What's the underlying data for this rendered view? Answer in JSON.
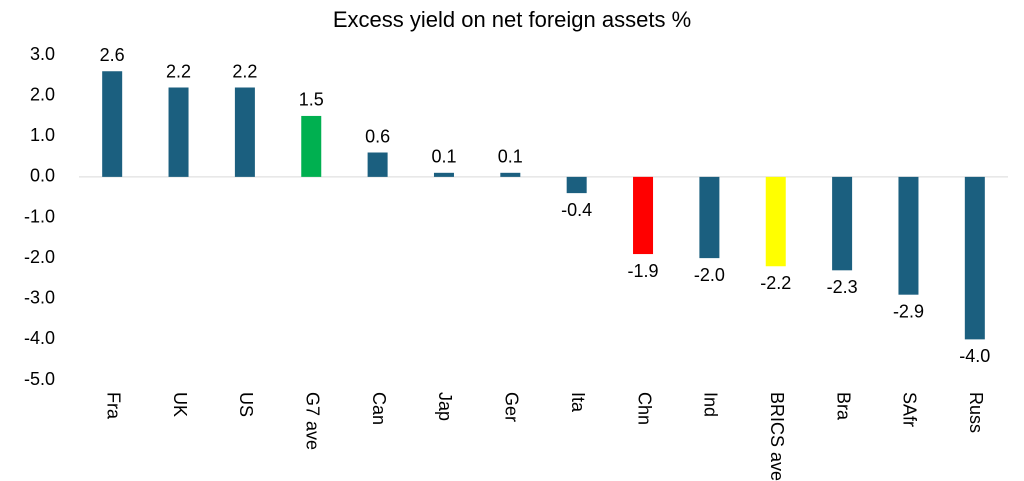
{
  "chart_data": {
    "type": "bar",
    "title": "Excess yield on net foreign assets %",
    "categories": [
      "Fra",
      "UK",
      "US",
      "G7 ave",
      "Can",
      "Jap",
      "Ger",
      "Ita",
      "Chn",
      "Ind",
      "BRICS ave",
      "Bra",
      "SAfr",
      "Russ"
    ],
    "values": [
      2.6,
      2.2,
      2.2,
      1.5,
      0.6,
      0.1,
      0.1,
      -0.4,
      -1.9,
      -2.0,
      -2.2,
      -2.3,
      -2.9,
      -4.0
    ],
    "value_labels": [
      "2.6",
      "2.2",
      "2.2",
      "1.5",
      "0.6",
      "0.1",
      "0.1",
      "-0.4",
      "-1.9",
      "-2.0",
      "-2.2",
      "-2.3",
      "-2.9",
      "-4.0"
    ],
    "colors": [
      "#1b5f7f",
      "#1b5f7f",
      "#1b5f7f",
      "#00b050",
      "#1b5f7f",
      "#1b5f7f",
      "#1b5f7f",
      "#1b5f7f",
      "#ff0000",
      "#1b5f7f",
      "#ffff00",
      "#1b5f7f",
      "#1b5f7f",
      "#1b5f7f"
    ],
    "ylim": [
      -5,
      3
    ],
    "yticks": [
      {
        "value": 3,
        "label": "3.0"
      },
      {
        "value": 2,
        "label": "2.0"
      },
      {
        "value": 1,
        "label": "1.0"
      },
      {
        "value": 0,
        "label": "0.0"
      },
      {
        "value": -1,
        "label": "-1.0"
      },
      {
        "value": -2,
        "label": "-2.0"
      },
      {
        "value": -3,
        "label": "-3.0"
      },
      {
        "value": -4,
        "label": "-4.0"
      },
      {
        "value": -5,
        "label": "-5.0"
      }
    ],
    "grid": false
  }
}
